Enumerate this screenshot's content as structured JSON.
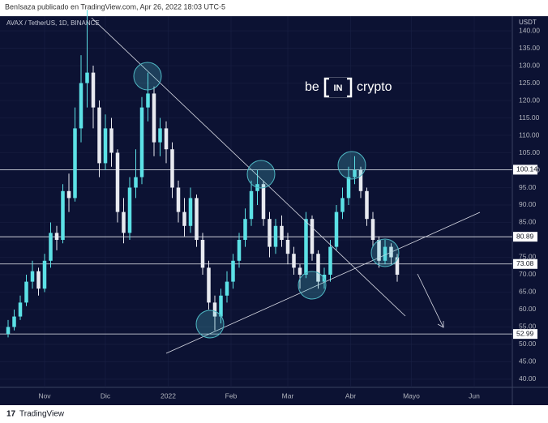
{
  "header": {
    "title": "BenIsaza publicado en TradingView.com, Apr 26, 2022 18:03 UTC-5"
  },
  "footer": {
    "brand": "TradingView"
  },
  "logo": {
    "left": "be",
    "mid": "IN",
    "right": "crypto"
  },
  "chart_data": {
    "type": "candlestick",
    "title": "AVAX / TetherUS, 1D, BINANCE",
    "y_axis_label": "USDT",
    "up_color": "#5ce1e6",
    "down_color": "#e8eaf0",
    "grid": true,
    "xlim": [
      -22,
      230.8
    ],
    "ylim": [
      37.67,
      144.19
    ],
    "xticks": [
      {
        "value": 0,
        "label": "Nov"
      },
      {
        "value": 30,
        "label": "Dic"
      },
      {
        "value": 61,
        "label": "2022"
      },
      {
        "value": 92,
        "label": "Feb"
      },
      {
        "value": 120,
        "label": "Mar"
      },
      {
        "value": 151,
        "label": "Abr"
      },
      {
        "value": 181,
        "label": "Mayo"
      },
      {
        "value": 212,
        "label": "Jun"
      }
    ],
    "yticks": [
      {
        "value": 40,
        "label": "40.00"
      },
      {
        "value": 45,
        "label": "45.00"
      },
      {
        "value": 50,
        "label": "50.00"
      },
      {
        "value": 55,
        "label": "55.00"
      },
      {
        "value": 60,
        "label": "60.00"
      },
      {
        "value": 65,
        "label": "65.00"
      },
      {
        "value": 70,
        "label": "70.00"
      },
      {
        "value": 75,
        "label": "75.00"
      },
      {
        "value": 80,
        "label": "80.00"
      },
      {
        "value": 85,
        "label": "85.00"
      },
      {
        "value": 90,
        "label": "90.00"
      },
      {
        "value": 95,
        "label": "95.00"
      },
      {
        "value": 100,
        "label": "100.00"
      },
      {
        "value": 105,
        "label": "105.00"
      },
      {
        "value": 110,
        "label": "110.00"
      },
      {
        "value": 115,
        "label": "115.00"
      },
      {
        "value": 120,
        "label": "120.00"
      },
      {
        "value": 125,
        "label": "125.00"
      },
      {
        "value": 130,
        "label": "130.00"
      },
      {
        "value": 135,
        "label": "135.00"
      },
      {
        "value": 140,
        "label": "140.00"
      }
    ],
    "levels": [
      100.14,
      80.89,
      73.08,
      52.99
    ],
    "x": [
      -18,
      -15,
      -12,
      -9,
      -6,
      -3,
      0,
      3,
      6,
      9,
      12,
      15,
      18,
      21,
      24,
      27,
      30,
      33,
      36,
      39,
      42,
      45,
      48,
      51,
      54,
      57,
      60,
      63,
      66,
      69,
      72,
      75,
      78,
      81,
      84,
      87,
      90,
      93,
      96,
      99,
      102,
      105,
      108,
      111,
      114,
      117,
      120,
      123,
      126,
      129,
      132,
      135,
      138,
      141,
      144,
      147,
      150,
      153,
      156,
      159,
      162,
      165,
      168,
      171,
      174
    ],
    "open": [
      53,
      55,
      58,
      62,
      68,
      71,
      66,
      74,
      82,
      80,
      94,
      92,
      112,
      125,
      128,
      118,
      102,
      112,
      105,
      88,
      82,
      95,
      98,
      118,
      122,
      108,
      112,
      106,
      95,
      88,
      84,
      92,
      80,
      72,
      62,
      58,
      64,
      68,
      74,
      80,
      86,
      94,
      96,
      86,
      78,
      84,
      80,
      76,
      72,
      70,
      86,
      76,
      68,
      70,
      78,
      88,
      92,
      98,
      100,
      94,
      86,
      80,
      74,
      78,
      75
    ],
    "high": [
      57,
      60,
      64,
      70,
      74,
      72,
      76,
      85,
      84,
      96,
      99,
      118,
      133,
      146,
      130,
      120,
      116,
      115,
      106,
      92,
      98,
      106,
      121,
      128,
      124,
      115,
      114,
      108,
      97,
      92,
      95,
      93,
      82,
      74,
      64,
      66,
      71,
      76,
      82,
      89,
      97,
      100,
      97,
      88,
      86,
      87,
      82,
      78,
      73,
      88,
      87,
      77,
      72,
      80,
      90,
      95,
      101,
      104,
      101,
      95,
      88,
      81,
      80,
      79,
      76
    ],
    "low": [
      52,
      54,
      57,
      61,
      66,
      64,
      65,
      72,
      77,
      79,
      88,
      91,
      108,
      118,
      112,
      98,
      100,
      101,
      85,
      79,
      80,
      92,
      96,
      114,
      104,
      104,
      102,
      92,
      85,
      81,
      82,
      78,
      70,
      60,
      54,
      56,
      62,
      66,
      72,
      78,
      84,
      90,
      84,
      75,
      76,
      78,
      73,
      70,
      66,
      69,
      74,
      66,
      66,
      68,
      77,
      86,
      90,
      96,
      92,
      84,
      78,
      72,
      73,
      73,
      68
    ],
    "close": [
      55,
      58,
      62,
      68,
      71,
      66,
      74,
      82,
      80,
      94,
      92,
      112,
      125,
      128,
      118,
      102,
      112,
      105,
      88,
      82,
      95,
      98,
      118,
      122,
      108,
      112,
      106,
      95,
      88,
      84,
      92,
      80,
      72,
      62,
      58,
      64,
      68,
      74,
      80,
      86,
      94,
      96,
      86,
      78,
      84,
      80,
      76,
      72,
      70,
      86,
      76,
      68,
      70,
      78,
      88,
      92,
      98,
      100,
      94,
      86,
      80,
      74,
      78,
      75,
      70
    ]
  }
}
